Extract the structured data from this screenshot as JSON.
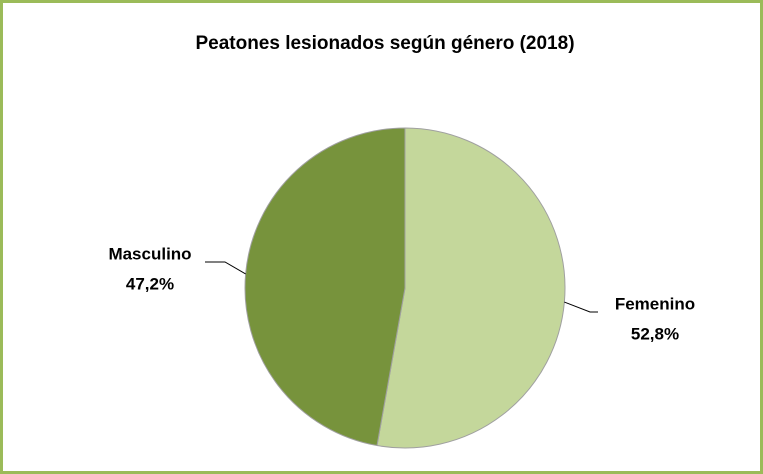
{
  "chart_data": {
    "type": "pie",
    "title": "Peatones lesionados  según género (2018)",
    "categories": [
      "Femenino",
      "Masculino"
    ],
    "values": [
      52.8,
      47.2
    ],
    "value_labels": [
      "52,8%",
      "47,2%"
    ],
    "colors": [
      "#c4d79b",
      "#77933c"
    ]
  }
}
